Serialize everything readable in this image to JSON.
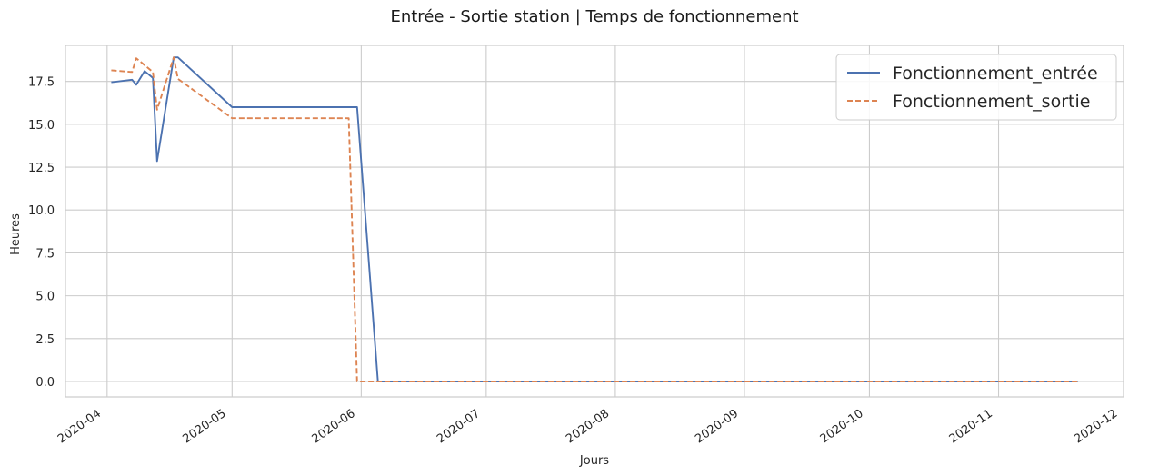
{
  "chart_data": {
    "type": "line",
    "title": "Entrée - Sortie station | Temps de fonctionnement",
    "xlabel": "Jours",
    "ylabel": "Heures",
    "x_axis_type": "date",
    "xlim": [
      "2020-03-22",
      "2020-12-01"
    ],
    "ylim": [
      -0.9,
      19.6
    ],
    "grid": true,
    "legend_position": "top-right",
    "x_ticks": [
      "2020-04",
      "2020-05",
      "2020-06",
      "2020-07",
      "2020-08",
      "2020-09",
      "2020-10",
      "2020-11",
      "2020-12"
    ],
    "y_ticks": [
      0.0,
      2.5,
      5.0,
      7.5,
      10.0,
      12.5,
      15.0,
      17.5
    ],
    "y_tick_labels": [
      "0.0",
      "2.5",
      "5.0",
      "7.5",
      "10.0",
      "12.5",
      "15.0",
      "17.5"
    ],
    "series": [
      {
        "name": "Fonctionnement_entrée",
        "color": "#4c72b0",
        "dash": "solid",
        "points": [
          [
            "2020-04-02",
            17.45
          ],
          [
            "2020-04-07",
            17.6
          ],
          [
            "2020-04-08",
            17.3
          ],
          [
            "2020-04-10",
            18.1
          ],
          [
            "2020-04-12",
            17.7
          ],
          [
            "2020-04-13",
            12.85
          ],
          [
            "2020-04-17",
            18.9
          ],
          [
            "2020-04-18",
            18.9
          ],
          [
            "2020-05-01",
            16.0
          ],
          [
            "2020-05-31",
            16.0
          ],
          [
            "2020-06-05",
            0.0
          ],
          [
            "2020-11-20",
            0.0
          ]
        ]
      },
      {
        "name": "Fonctionnement_sortie",
        "color": "#dd8452",
        "dash": "dashed",
        "points": [
          [
            "2020-04-02",
            18.15
          ],
          [
            "2020-04-07",
            18.05
          ],
          [
            "2020-04-08",
            18.85
          ],
          [
            "2020-04-12",
            18.05
          ],
          [
            "2020-04-13",
            15.85
          ],
          [
            "2020-04-17",
            18.9
          ],
          [
            "2020-04-18",
            17.65
          ],
          [
            "2020-05-01",
            15.35
          ],
          [
            "2020-05-29",
            15.35
          ],
          [
            "2020-05-31",
            0.0
          ],
          [
            "2020-11-20",
            0.0
          ]
        ]
      }
    ]
  }
}
